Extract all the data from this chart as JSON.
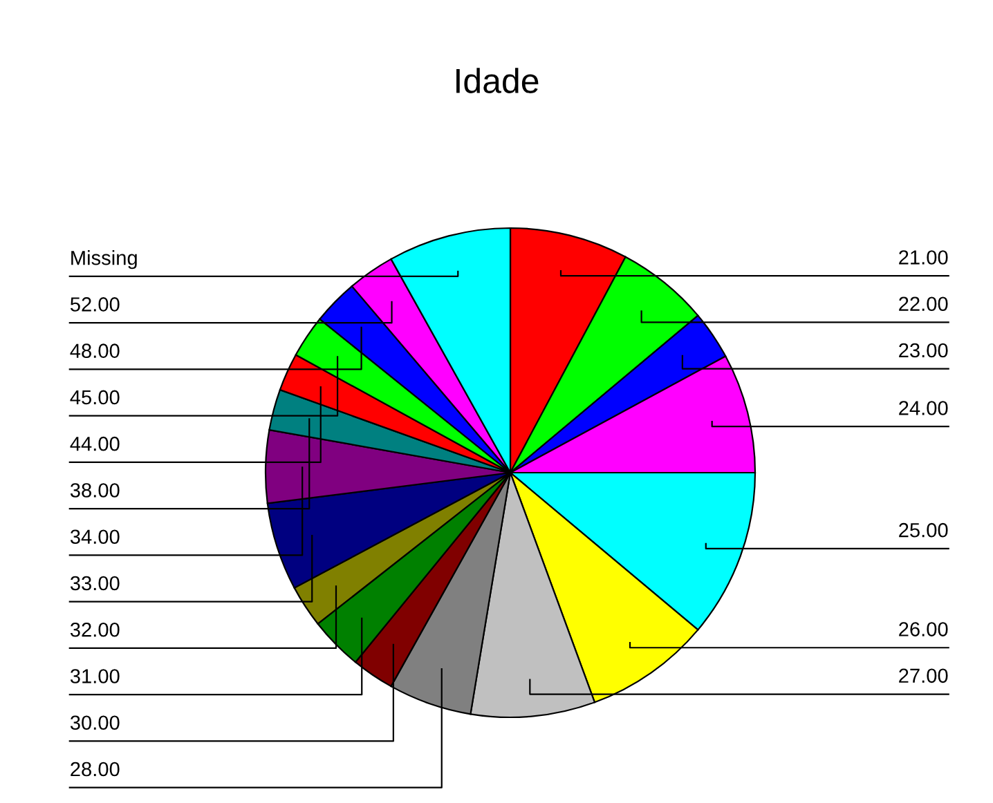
{
  "chart_data": {
    "type": "pie",
    "title": "Idade",
    "categories": [
      "21.00",
      "22.00",
      "23.00",
      "24.00",
      "25.00",
      "26.00",
      "27.00",
      "28.00",
      "30.00",
      "31.00",
      "32.00",
      "33.00",
      "34.00",
      "38.00",
      "44.00",
      "45.00",
      "48.00",
      "52.00",
      "Missing"
    ],
    "values": [
      7.8,
      6.1,
      3.2,
      7.9,
      11.1,
      8.3,
      8.2,
      5.5,
      2.8,
      3.5,
      2.8,
      5.8,
      4.8,
      2.7,
      2.5,
      2.8,
      3.0,
      3.1,
      8.1
    ],
    "colors": [
      "#ff0000",
      "#00ff00",
      "#0000ff",
      "#ff00ff",
      "#00ffff",
      "#ffff00",
      "#c0c0c0",
      "#808080",
      "#800000",
      "#008000",
      "#808000",
      "#000080",
      "#800080",
      "#008080",
      "#ff0000",
      "#00ff00",
      "#0000ff",
      "#ff00ff",
      "#00ffff"
    ],
    "legend": false
  }
}
